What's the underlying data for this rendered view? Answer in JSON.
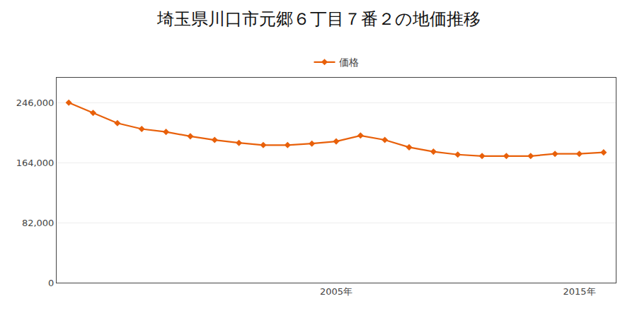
{
  "chart_data": {
    "type": "line",
    "title": "埼玉県川口市元郷６丁目７番２の地価推移",
    "x": [
      1994,
      1995,
      1996,
      1997,
      1998,
      1999,
      2000,
      2001,
      2002,
      2003,
      2004,
      2005,
      2006,
      2007,
      2008,
      2009,
      2010,
      2011,
      2012,
      2013,
      2014,
      2015,
      2016
    ],
    "series": [
      {
        "name": "価格",
        "color": "#e8600a",
        "marker": "diamond",
        "values": [
          246000,
          232000,
          218000,
          210000,
          206000,
          200000,
          195000,
          191000,
          188000,
          188000,
          190000,
          193000,
          201000,
          195000,
          185000,
          179000,
          175000,
          173000,
          173000,
          173000,
          176000,
          176000,
          178000
        ]
      }
    ],
    "xlim": [
      1993.5,
      2016.5
    ],
    "xticks": [
      {
        "value": 2005,
        "label": "2005年"
      },
      {
        "value": 2015,
        "label": "2015年"
      }
    ],
    "ylim": [
      0,
      280000
    ],
    "yticks": [
      0,
      {
        "value": 82000,
        "label": "82,000"
      },
      {
        "value": 164000,
        "label": "164,000"
      },
      {
        "value": 246000,
        "label": "246,000"
      }
    ],
    "grid": true,
    "legend": "top"
  }
}
